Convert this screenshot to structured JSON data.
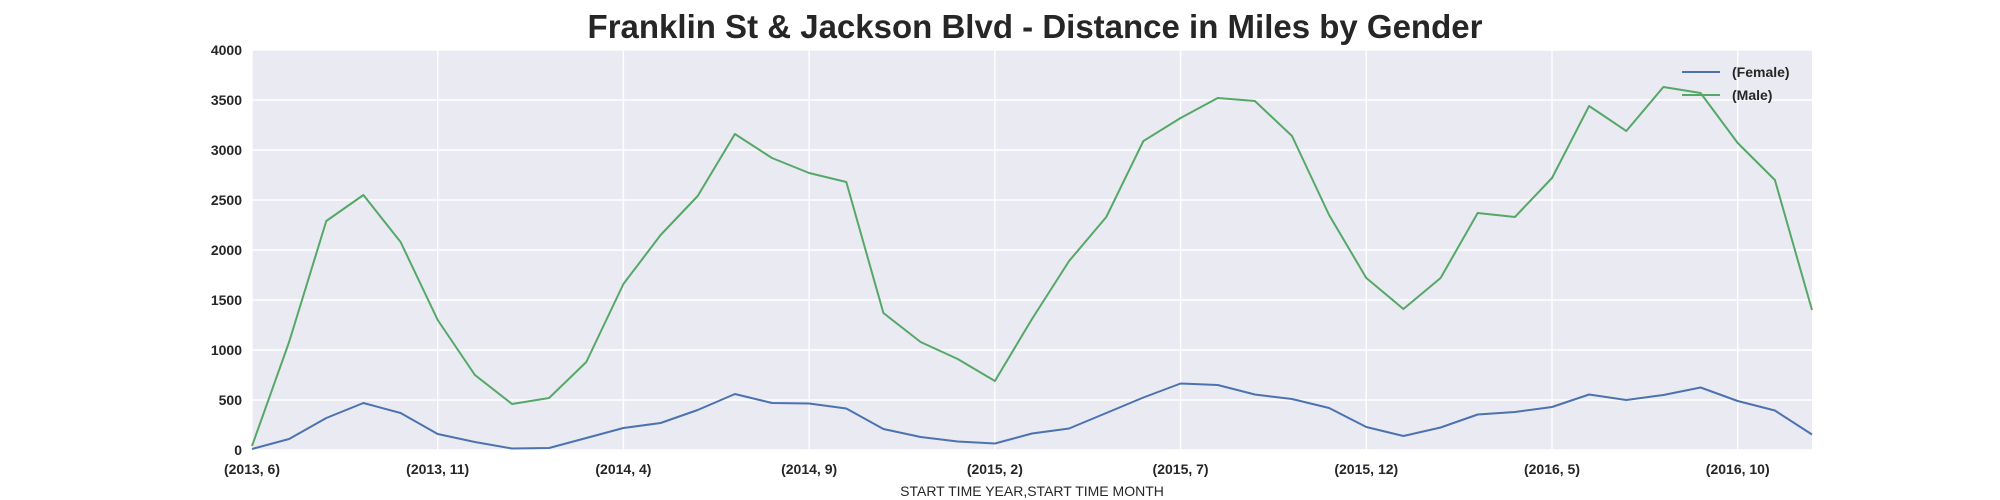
{
  "chart_data": {
    "type": "line",
    "title": "Franklin St & Jackson Blvd - Distance in Miles by Gender",
    "xlabel": "START TIME YEAR,START TIME MONTH",
    "ylabel": "",
    "ylim": [
      0,
      4000
    ],
    "yticks": [
      0,
      500,
      1000,
      1500,
      2000,
      2500,
      3000,
      3500,
      4000
    ],
    "x": [
      "(2013, 6)",
      "(2013, 7)",
      "(2013, 8)",
      "(2013, 9)",
      "(2013, 10)",
      "(2013, 11)",
      "(2013, 12)",
      "(2014, 1)",
      "(2014, 2)",
      "(2014, 3)",
      "(2014, 4)",
      "(2014, 5)",
      "(2014, 6)",
      "(2014, 7)",
      "(2014, 8)",
      "(2014, 9)",
      "(2014, 10)",
      "(2014, 11)",
      "(2014, 12)",
      "(2015, 1)",
      "(2015, 2)",
      "(2015, 3)",
      "(2015, 4)",
      "(2015, 5)",
      "(2015, 6)",
      "(2015, 7)",
      "(2015, 8)",
      "(2015, 9)",
      "(2015, 10)",
      "(2015, 11)",
      "(2015, 12)",
      "(2016, 1)",
      "(2016, 2)",
      "(2016, 3)",
      "(2016, 4)",
      "(2016, 5)",
      "(2016, 6)",
      "(2016, 7)",
      "(2016, 8)",
      "(2016, 9)",
      "(2016, 10)",
      "(2016, 11)",
      "(2016, 12)"
    ],
    "xtick_labels": [
      "(2013, 6)",
      "(2013, 11)",
      "(2014, 4)",
      "(2014, 9)",
      "(2015, 2)",
      "(2015, 7)",
      "(2015, 12)",
      "(2016, 5)",
      "(2016, 10)"
    ],
    "xtick_indices": [
      0,
      5,
      10,
      15,
      20,
      25,
      30,
      35,
      40
    ],
    "series": [
      {
        "name": "(Female)",
        "color": "#4c72b0",
        "values": [
          10,
          110,
          320,
          470,
          370,
          160,
          80,
          15,
          20,
          120,
          220,
          270,
          400,
          560,
          470,
          465,
          415,
          210,
          130,
          85,
          65,
          165,
          215,
          370,
          525,
          665,
          650,
          555,
          510,
          420,
          230,
          140,
          225,
          355,
          380,
          430,
          555,
          500,
          550,
          625,
          490,
          395,
          155
        ]
      },
      {
        "name": "(Male)",
        "color": "#55a868",
        "values": [
          40,
          1080,
          2290,
          2550,
          2080,
          1300,
          750,
          460,
          520,
          880,
          1660,
          2150,
          2540,
          3160,
          2920,
          2770,
          2680,
          1370,
          1080,
          910,
          690,
          1310,
          1890,
          2330,
          3090,
          3320,
          3520,
          3490,
          3140,
          2350,
          1720,
          1410,
          1720,
          2370,
          2330,
          2720,
          3440,
          3190,
          3630,
          3570,
          3070,
          2700,
          1400
        ]
      }
    ],
    "legend": "top-right",
    "grid": true
  }
}
